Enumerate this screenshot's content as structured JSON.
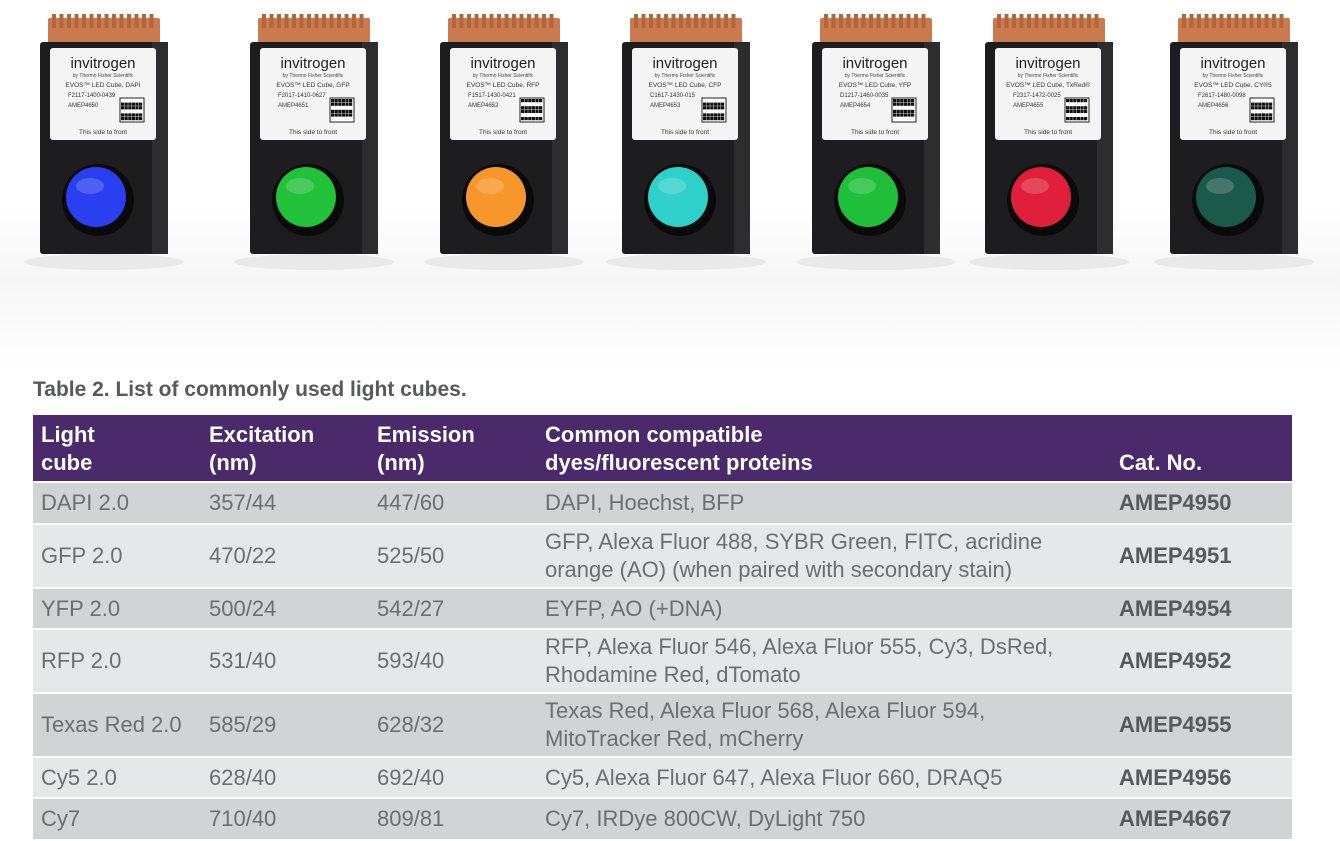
{
  "photo": {
    "cubes": [
      {
        "brand": "invitrogen",
        "sub": "by Thermo Fisher Scientific",
        "product": "EVOS™ LED Cube, DAPI",
        "lot": "F2117-1400-0439",
        "ref": "AMEP4650",
        "front": "This side to front",
        "color": "#2a3ff0"
      },
      {
        "brand": "invitrogen",
        "sub": "by Thermo Fisher Scientific",
        "product": "EVOS™ LED Cube, GFP",
        "lot": "F2017-1410-0627",
        "ref": "AMEP4651",
        "front": "This side to front",
        "color": "#22c13a"
      },
      {
        "brand": "invitrogen",
        "sub": "by Thermo Fisher Scientific",
        "product": "EVOS™ LED Cube, RFP",
        "lot": "F1517-1430-0421",
        "ref": "AMEP4652",
        "front": "This side to front",
        "color": "#f7962a"
      },
      {
        "brand": "invitrogen",
        "sub": "by Thermo Fisher Scientific",
        "product": "EVOS™ LED Cube, CFP",
        "lot": "C1617-1430-015",
        "ref": "AMEP4653",
        "front": "This side to front",
        "color": "#2fd0c9"
      },
      {
        "brand": "invitrogen",
        "sub": "by Thermo Fisher Scientific",
        "product": "EVOS™ LED Cube, YFP",
        "lot": "D1217-1460-0035",
        "ref": "AMEP4654",
        "front": "This side to front",
        "color": "#1fbf3a"
      },
      {
        "brand": "invitrogen",
        "sub": "by Thermo Fisher Scientific",
        "product": "EVOS™ LED Cube, TxRed®",
        "lot": "F2317-1472-0025",
        "ref": "AMEP4655",
        "front": "This side to front",
        "color": "#e0203a"
      },
      {
        "brand": "invitrogen",
        "sub": "by Thermo Fisher Scientific",
        "product": "EVOS™ LED Cube, CY®5",
        "lot": "F2617-1480-0098",
        "ref": "AMEP4656",
        "front": "This side to front",
        "color": "#1b5a4a"
      }
    ]
  },
  "caption": "Table 2.  List of commonly used light cubes.",
  "table": {
    "headers": [
      {
        "line1": "Light",
        "line2": "cube"
      },
      {
        "line1": "Excitation",
        "line2": "(nm)"
      },
      {
        "line1": "Emission",
        "line2": "(nm)"
      },
      {
        "line1": "Common compatible",
        "line2": "dyes/fluorescent proteins"
      },
      {
        "line1": "",
        "line2": "Cat. No."
      }
    ],
    "rows": [
      {
        "cube": "DAPI 2.0",
        "excitation": "357/44",
        "emission": "447/60",
        "dyes1": "DAPI, Hoechst, BFP",
        "dyes2": "",
        "cat": "AMEP4950"
      },
      {
        "cube": "GFP 2.0",
        "excitation": "470/22",
        "emission": "525/50",
        "dyes1": "GFP, Alexa Fluor 488, SYBR Green, FITC, acridine",
        "dyes2": "orange (AO) (when paired with secondary stain)",
        "cat": "AMEP4951"
      },
      {
        "cube": "YFP 2.0",
        "excitation": "500/24",
        "emission": "542/27",
        "dyes1": "EYFP, AO (+DNA)",
        "dyes2": "",
        "cat": "AMEP4954"
      },
      {
        "cube": "RFP 2.0",
        "excitation": "531/40",
        "emission": "593/40",
        "dyes1": "RFP, Alexa Fluor 546, Alexa Fluor 555, Cy3, DsRed,",
        "dyes2": "Rhodamine Red, dTomato",
        "cat": "AMEP4952"
      },
      {
        "cube": "Texas Red 2.0",
        "excitation": "585/29",
        "emission": "628/32",
        "dyes1": "Texas Red, Alexa Fluor 568, Alexa Fluor 594,",
        "dyes2": "MitoTracker Red, mCherry",
        "cat": "AMEP4955"
      },
      {
        "cube": "Cy5 2.0",
        "excitation": "628/40",
        "emission": "692/40",
        "dyes1": "Cy5, Alexa Fluor 647, Alexa Fluor 660, DRAQ5",
        "dyes2": "",
        "cat": "AMEP4956"
      },
      {
        "cube": "Cy7",
        "excitation": "710/40",
        "emission": "809/81",
        "dyes1": "Cy7, IRDye 800CW, DyLight 750",
        "dyes2": "",
        "cat": "AMEP4667"
      }
    ]
  },
  "colors": {
    "header_bg": "#4b2a6b",
    "row_odd": "#d1d3d4",
    "row_even": "#e6e7e8",
    "text": "#6d6e71"
  }
}
